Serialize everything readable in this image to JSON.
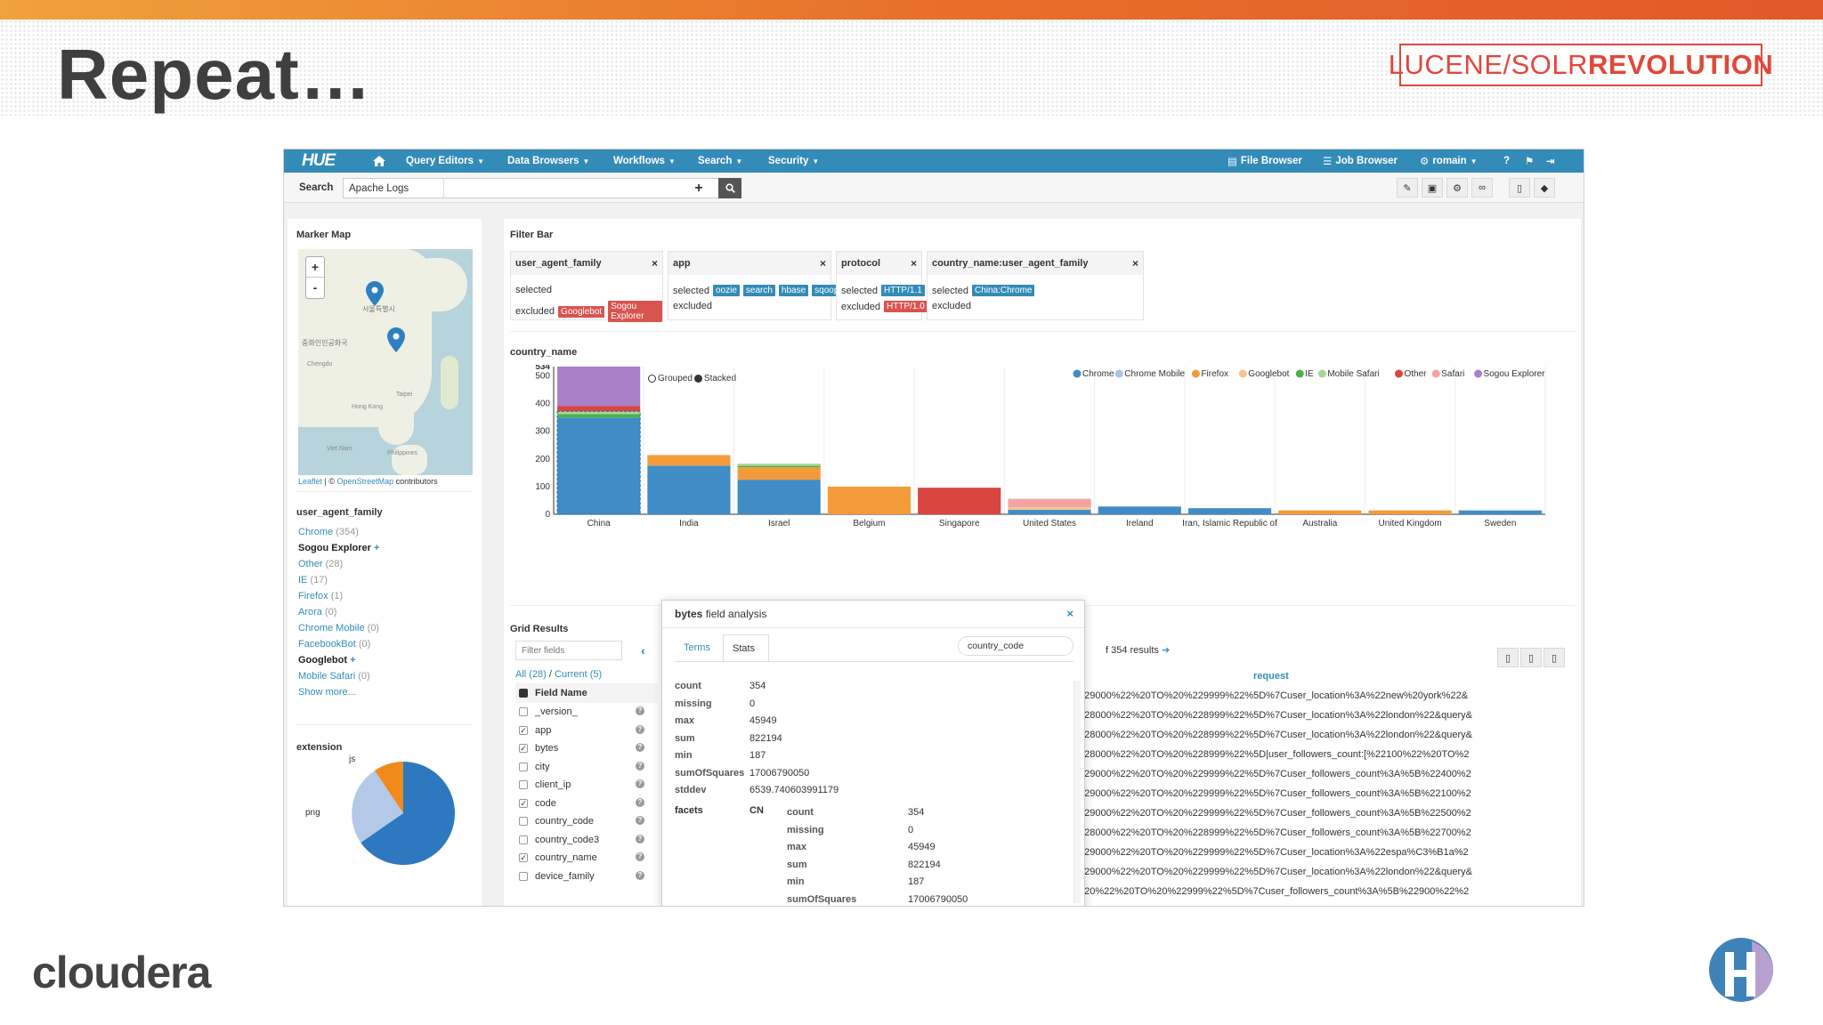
{
  "slide": {
    "title": "Repeat…",
    "conf_logo_a": "LUCENE/SOLR",
    "conf_logo_b": "REVOLUTION",
    "footer_brand": "cloudera"
  },
  "nav": {
    "logo": "HUE",
    "items": [
      "Query Editors",
      "Data Browsers",
      "Workflows",
      "Search",
      "Security"
    ],
    "right": [
      "File Browser",
      "Job Browser",
      "romain"
    ]
  },
  "search": {
    "label": "Search",
    "collection": "Apache Logs"
  },
  "left": {
    "map_title": "Marker Map",
    "map_credit_a": "Leaflet",
    "map_credit_b": "| ©",
    "map_credit_c": "OpenStreetMap",
    "map_credit_d": "contributors",
    "map_labels": [
      "중화인민공화국",
      "Chengdu",
      "Hong Kong",
      "Viet Nam",
      "Philippines",
      "서울특별시",
      "Taipei"
    ],
    "facet_title": "user_agent_family",
    "facets": [
      {
        "name": "Chrome",
        "count": "(354)",
        "sel": false
      },
      {
        "name": "Sogou Explorer",
        "count": "+",
        "sel": true
      },
      {
        "name": "Other",
        "count": "(28)",
        "sel": false
      },
      {
        "name": "IE",
        "count": "(17)",
        "sel": false
      },
      {
        "name": "Firefox",
        "count": "(1)",
        "sel": false
      },
      {
        "name": "Arora",
        "count": "(0)",
        "sel": false
      },
      {
        "name": "Chrome Mobile",
        "count": "(0)",
        "sel": false
      },
      {
        "name": "FacebookBot",
        "count": "(0)",
        "sel": false
      },
      {
        "name": "Googlebot",
        "count": "+",
        "sel": true
      },
      {
        "name": "Mobile Safari",
        "count": "(0)",
        "sel": false
      },
      {
        "name": "Show more...",
        "count": "",
        "sel": false
      }
    ],
    "ext_title": "extension",
    "pie_labels": [
      "js",
      "png"
    ]
  },
  "filterbar": {
    "title": "Filter Bar",
    "sel_label": "selected",
    "exc_label": "excluded",
    "cards": [
      {
        "name": "user_agent_family",
        "selected": [],
        "excluded": [
          "Googlebot",
          "Sogou Explorer"
        ]
      },
      {
        "name": "app",
        "selected": [
          "oozie",
          "search",
          "hbase",
          "sqoop"
        ],
        "excluded": []
      },
      {
        "name": "protocol",
        "selected": [
          "HTTP/1.1"
        ],
        "excluded": [
          "HTTP/1.0"
        ]
      },
      {
        "name": "country_name:user_agent_family",
        "selected": [
          "China:Chrome"
        ],
        "excluded": []
      }
    ]
  },
  "chart_section_title": "country_name",
  "toggle": {
    "grouped": "Grouped",
    "stacked": "Stacked"
  },
  "chart_data": {
    "type": "bar",
    "stacked": true,
    "title": "country_name",
    "categories": [
      "China",
      "India",
      "Israel",
      "Belgium",
      "Singapore",
      "United States",
      "Ireland",
      "Iran, Islamic Republic of",
      "Australia",
      "United Kingdom",
      "Sweden"
    ],
    "ylim": [
      0,
      534
    ],
    "yticks": [
      0,
      100,
      200,
      300,
      400,
      500,
      534
    ],
    "series": [
      {
        "name": "Chrome",
        "color": "#3f8cc7",
        "values": [
          350,
          176,
          125,
          0,
          0,
          16,
          28,
          22,
          0,
          0,
          14
        ]
      },
      {
        "name": "Chrome Mobile",
        "color": "#a9c4e6",
        "values": [
          0,
          0,
          0,
          0,
          0,
          0,
          0,
          0,
          0,
          0,
          0
        ]
      },
      {
        "name": "Firefox",
        "color": "#f39a3b",
        "values": [
          0,
          38,
          45,
          100,
          0,
          0,
          0,
          0,
          14,
          14,
          0
        ]
      },
      {
        "name": "Googlebot",
        "color": "#f9c48c",
        "values": [
          0,
          0,
          0,
          0,
          0,
          10,
          0,
          0,
          0,
          0,
          0
        ]
      },
      {
        "name": "IE",
        "color": "#4fae4a",
        "values": [
          12,
          0,
          5,
          0,
          0,
          0,
          0,
          0,
          0,
          0,
          0
        ]
      },
      {
        "name": "Mobile Safari",
        "color": "#a6d89a",
        "values": [
          10,
          0,
          8,
          0,
          0,
          0,
          0,
          0,
          0,
          0,
          0
        ]
      },
      {
        "name": "Other",
        "color": "#d94540",
        "values": [
          20,
          0,
          0,
          0,
          96,
          0,
          0,
          0,
          0,
          0,
          0
        ]
      },
      {
        "name": "Safari",
        "color": "#f4a3a4",
        "values": [
          0,
          0,
          0,
          0,
          0,
          30,
          0,
          0,
          0,
          0,
          0
        ]
      },
      {
        "name": "Sogou Explorer",
        "color": "#a780c9",
        "values": [
          142,
          0,
          0,
          0,
          0,
          0,
          0,
          0,
          0,
          0,
          0
        ]
      }
    ]
  },
  "grid": {
    "title": "Grid Results",
    "filter_placeholder": "Filter fields",
    "all_link": "All (28)",
    "sep": "/",
    "current_link": "Current (5)",
    "field_header": "Field Name",
    "fields": [
      {
        "name": "_version_",
        "checked": false
      },
      {
        "name": "app",
        "checked": true
      },
      {
        "name": "bytes",
        "checked": true
      },
      {
        "name": "city",
        "checked": false
      },
      {
        "name": "client_ip",
        "checked": false
      },
      {
        "name": "code",
        "checked": true
      },
      {
        "name": "country_code",
        "checked": false
      },
      {
        "name": "country_code3",
        "checked": false
      },
      {
        "name": "country_name",
        "checked": true
      },
      {
        "name": "device_family",
        "checked": false
      }
    ],
    "results_label": "f 354 results",
    "col_header": "request",
    "rows": [
      "229000%22%20TO%20%229999%22%5D%7Cuser_location%3A%22new%20york%22&",
      "228000%22%20TO%20%228999%22%5D%7Cuser_location%3A%22london%22&query&",
      "228000%22%20TO%20%228999%22%5D%7Cuser_location%3A%22london%22&query&",
      "228000%22%20TO%20%228999%22%5D|user_followers_count:[%22100%22%20TO%2",
      "229000%22%20TO%20%229999%22%5D%7Cuser_followers_count%3A%5B%22400%2",
      "229000%22%20TO%20%229999%22%5D%7Cuser_followers_count%3A%5B%22100%2",
      "229000%22%20TO%20%229999%22%5D%7Cuser_followers_count%3A%5B%22500%2",
      "228000%22%20TO%20%228999%22%5D%7Cuser_followers_count%3A%5B%22700%2",
      "229000%22%20TO%20%229999%22%5D%7Cuser_location%3A%22espa%C3%B1a%2",
      "229000%22%20TO%20%229999%22%5D%7Cuser_location%3A%22london%22&query&",
      "220%22%20TO%20%22999%22%5D%7Cuser_followers_count%3A%5B%22900%22%2"
    ]
  },
  "popup": {
    "title_a": "bytes",
    "title_b": "field analysis",
    "tab_terms": "Terms",
    "tab_stats": "Stats",
    "facet_input": "country_code",
    "stats": [
      {
        "k": "count",
        "v": "354"
      },
      {
        "k": "missing",
        "v": "0"
      },
      {
        "k": "max",
        "v": "45949"
      },
      {
        "k": "sum",
        "v": "822194"
      },
      {
        "k": "min",
        "v": "187"
      },
      {
        "k": "sumOfSquares",
        "v": "17006790050"
      },
      {
        "k": "stddev",
        "v": "6539.740603991179"
      }
    ],
    "facets_label": "facets",
    "facet_code": "CN",
    "facet_stats": [
      {
        "k": "count",
        "v": "354"
      },
      {
        "k": "missing",
        "v": "0"
      },
      {
        "k": "max",
        "v": "45949"
      },
      {
        "k": "sum",
        "v": "822194"
      },
      {
        "k": "min",
        "v": "187"
      },
      {
        "k": "sumOfSquares",
        "v": "17006790050"
      }
    ]
  }
}
